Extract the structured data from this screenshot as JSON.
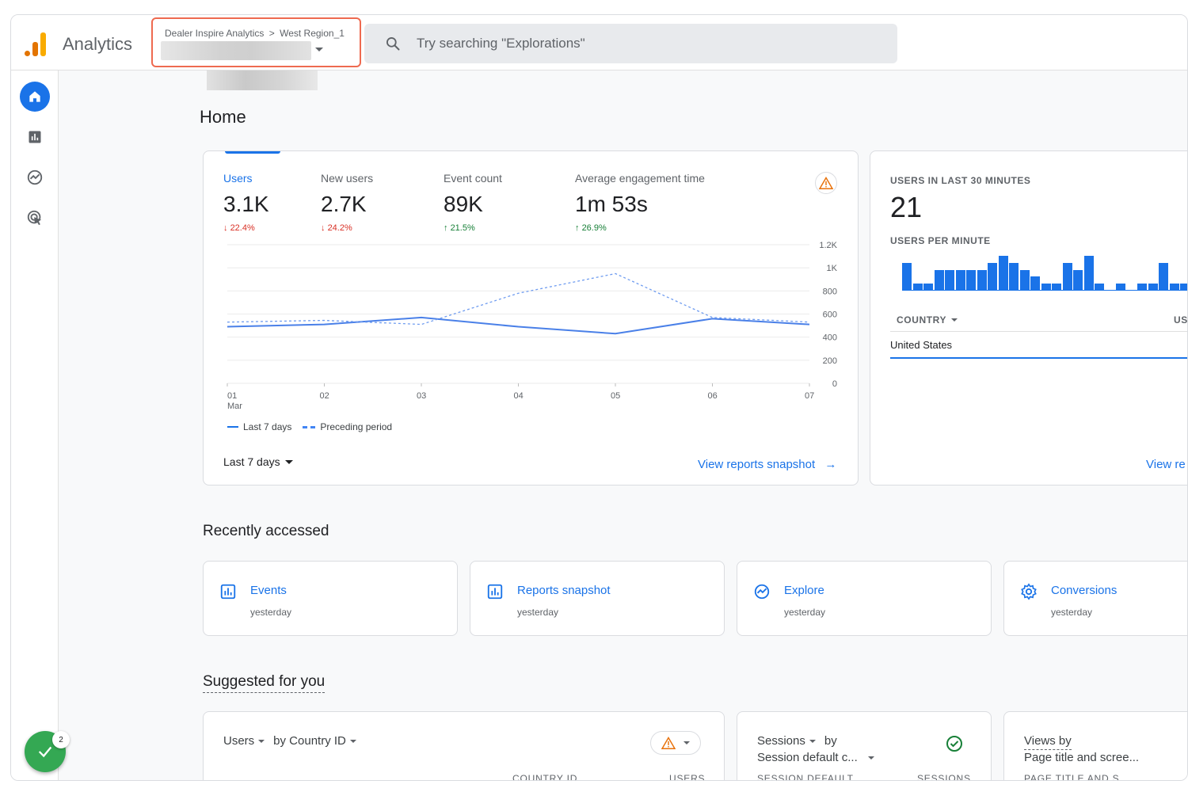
{
  "app": {
    "title": "Analytics"
  },
  "account": {
    "breadcrumb_account": "Dealer Inspire Analytics",
    "breadcrumb_separator": ">",
    "breadcrumb_property": "West Region_1"
  },
  "search": {
    "placeholder": "Try searching \"Explorations\""
  },
  "nav": {
    "items": [
      "home-icon",
      "reports-icon",
      "explore-icon",
      "advertising-icon"
    ]
  },
  "fab": {
    "badge_count": "2"
  },
  "page": {
    "title": "Home"
  },
  "metrics": [
    {
      "label": "Users",
      "value": "3.1K",
      "change": "22.4%",
      "direction": "down"
    },
    {
      "label": "New users",
      "value": "2.7K",
      "change": "24.2%",
      "direction": "down"
    },
    {
      "label": "Event count",
      "value": "89K",
      "change": "21.5%",
      "direction": "up"
    },
    {
      "label": "Average engagement time",
      "value": "1m 53s",
      "change": "26.9%",
      "direction": "up"
    }
  ],
  "chart_data": {
    "type": "line",
    "categories": [
      "01",
      "02",
      "03",
      "04",
      "05",
      "06",
      "07"
    ],
    "x_sublabel": "Mar",
    "y_ticks": [
      "1.2K",
      "1K",
      "800",
      "600",
      "400",
      "200",
      "0"
    ],
    "ylim": [
      0,
      1200
    ],
    "series": [
      {
        "name": "Last 7 days",
        "style": "solid",
        "values": [
          490,
          510,
          570,
          490,
          430,
          560,
          510
        ]
      },
      {
        "name": "Preceding period",
        "style": "dashed",
        "values": [
          530,
          545,
          510,
          780,
          950,
          570,
          530
        ]
      }
    ]
  },
  "chart_footer": {
    "date_range": "Last 7 days",
    "link": "View reports snapshot"
  },
  "realtime": {
    "users_label": "USERS IN LAST 30 MINUTES",
    "users_value": "21",
    "per_minute_label": "USERS PER MINUTE",
    "per_minute_values": [
      4,
      1,
      1,
      3,
      3,
      3,
      3,
      3,
      4,
      5,
      4,
      3,
      2,
      1,
      1,
      4,
      3,
      5,
      1,
      0,
      1,
      0,
      1,
      1,
      4,
      1,
      1,
      2
    ],
    "column_country": "COUNTRY",
    "column_users": "US",
    "row_country": "United States",
    "link": "View re"
  },
  "recent": {
    "title": "Recently accessed",
    "items": [
      {
        "name": "Events",
        "time": "yesterday",
        "icon": "reports-icon"
      },
      {
        "name": "Reports snapshot",
        "time": "yesterday",
        "icon": "reports-icon"
      },
      {
        "name": "Explore",
        "time": "yesterday",
        "icon": "explore-icon"
      },
      {
        "name": "Conversions",
        "time": "yesterday",
        "icon": "gear-icon"
      }
    ]
  },
  "suggested": {
    "title": "Suggested for you",
    "card1": {
      "metric": "Users",
      "by": "by Country ID",
      "col1": "COUNTRY ID",
      "col2": "USERS"
    },
    "card2": {
      "metric": "Sessions",
      "by": "by",
      "dimension": "Session default c...",
      "col1": "SESSION DEFAULT",
      "col2": "SESSIONS"
    },
    "card3": {
      "line1": "Views by",
      "line2": "Page title and scree...",
      "col1": "PAGE TITLE AND S"
    }
  },
  "colors": {
    "accent": "#1a73e8",
    "negative": "#d93025",
    "positive": "#188038",
    "highlight_border": "#ee6a50"
  }
}
